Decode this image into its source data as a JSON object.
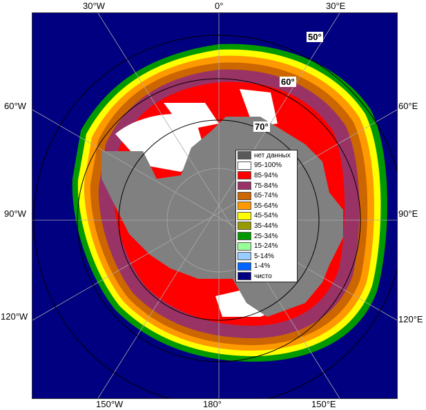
{
  "lon_labels": {
    "top": [
      "30°W",
      "0°",
      "30°E"
    ],
    "left": [
      "60°W",
      "90°W",
      "120°W"
    ],
    "right": [
      "60°E",
      "90°E",
      "120°E"
    ],
    "bottom": [
      "150°W",
      "180°",
      "150°E"
    ]
  },
  "lat_labels": [
    "50°",
    "60°",
    "70°"
  ],
  "legend": [
    {
      "label": "нет данных",
      "color": "#595959"
    },
    {
      "label": "95-100%",
      "color": "#ffffff"
    },
    {
      "label": "85-94%",
      "color": "#ff0000"
    },
    {
      "label": "75-84%",
      "color": "#993366"
    },
    {
      "label": "65-74%",
      "color": "#cc6600"
    },
    {
      "label": "55-64%",
      "color": "#ff9900"
    },
    {
      "label": "45-54%",
      "color": "#ffff00"
    },
    {
      "label": "35-44%",
      "color": "#999900"
    },
    {
      "label": "25-34%",
      "color": "#009900"
    },
    {
      "label": "15-24%",
      "color": "#99ff99"
    },
    {
      "label": "5-14%",
      "color": "#99ccff"
    },
    {
      "label": "1-4%",
      "color": "#0066ff"
    },
    {
      "label": "чисто",
      "color": "#000080"
    }
  ],
  "colors": {
    "ocean": "#000080",
    "land": "#808080",
    "graticule": "#aaaaaa",
    "circle": "#000000"
  }
}
